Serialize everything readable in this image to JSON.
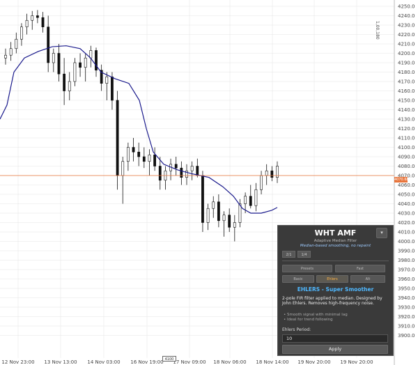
{
  "chart": {
    "price_ticks": [
      "4250.0",
      "4240.0",
      "4230.0",
      "4220.0",
      "4210.0",
      "4200.0",
      "4190.0",
      "4180.0",
      "4170.0",
      "4160.0",
      "4150.0",
      "4140.0",
      "4130.0",
      "4120.0",
      "4110.0",
      "4100.0",
      "4090.0",
      "4080.0",
      "4070.0",
      "4060.0",
      "4050.0",
      "4040.0",
      "4030.0",
      "4020.0",
      "4010.0",
      "4000.0",
      "3990.0",
      "3980.0",
      "3970.0",
      "3960.0",
      "3950.0",
      "3940.0",
      "3930.0",
      "3920.0",
      "3910.0",
      "3900.0"
    ],
    "time_ticks": [
      "12 Nov 23:00",
      "13 Nov 13:00",
      "14 Nov 03:00",
      "16 Nov 19:00",
      "17 Nov 09:00",
      "18 Nov 06:00",
      "18 Nov 14:00",
      "19 Nov 20:00",
      "19 Nov 20:00"
    ],
    "current_price_label": "4070.68",
    "vertical_label": "1,00,180",
    "time_marker": "4100",
    "colors": {
      "grid": "#e6e6e6",
      "candle": "#111111",
      "filter_line": "#1a1a8c",
      "current_price_line": "#e8743b",
      "panel_bg": "#3a3a3a",
      "accent_blue": "#4fb8ff",
      "accent_orange": "#ffb347"
    }
  },
  "panel": {
    "title": "WHT AMF",
    "close_icon": "chevron-down-icon",
    "subtitle": "Adaptive Median Filter",
    "link_text": "Median-based smoothing, no repaint",
    "small_btn_1": "2/1",
    "small_btn_2": "1/4",
    "grid_buttons": [
      "Presets",
      "Fast",
      "Basic",
      "Ehlers",
      "Alt"
    ],
    "active_grid_button": "Ehlers",
    "section_title": "EHLERS - Super Smoother",
    "description": "2-pole FIR filter applied to median. Designed by John Ehlers. Removes high-frequency noise.",
    "bullet_1": "• Smooth signal with minimal lag",
    "bullet_2": "• Ideal for trend following",
    "field_label": "Ehlers Period:",
    "field_value": "10",
    "apply_label": "Apply"
  }
}
